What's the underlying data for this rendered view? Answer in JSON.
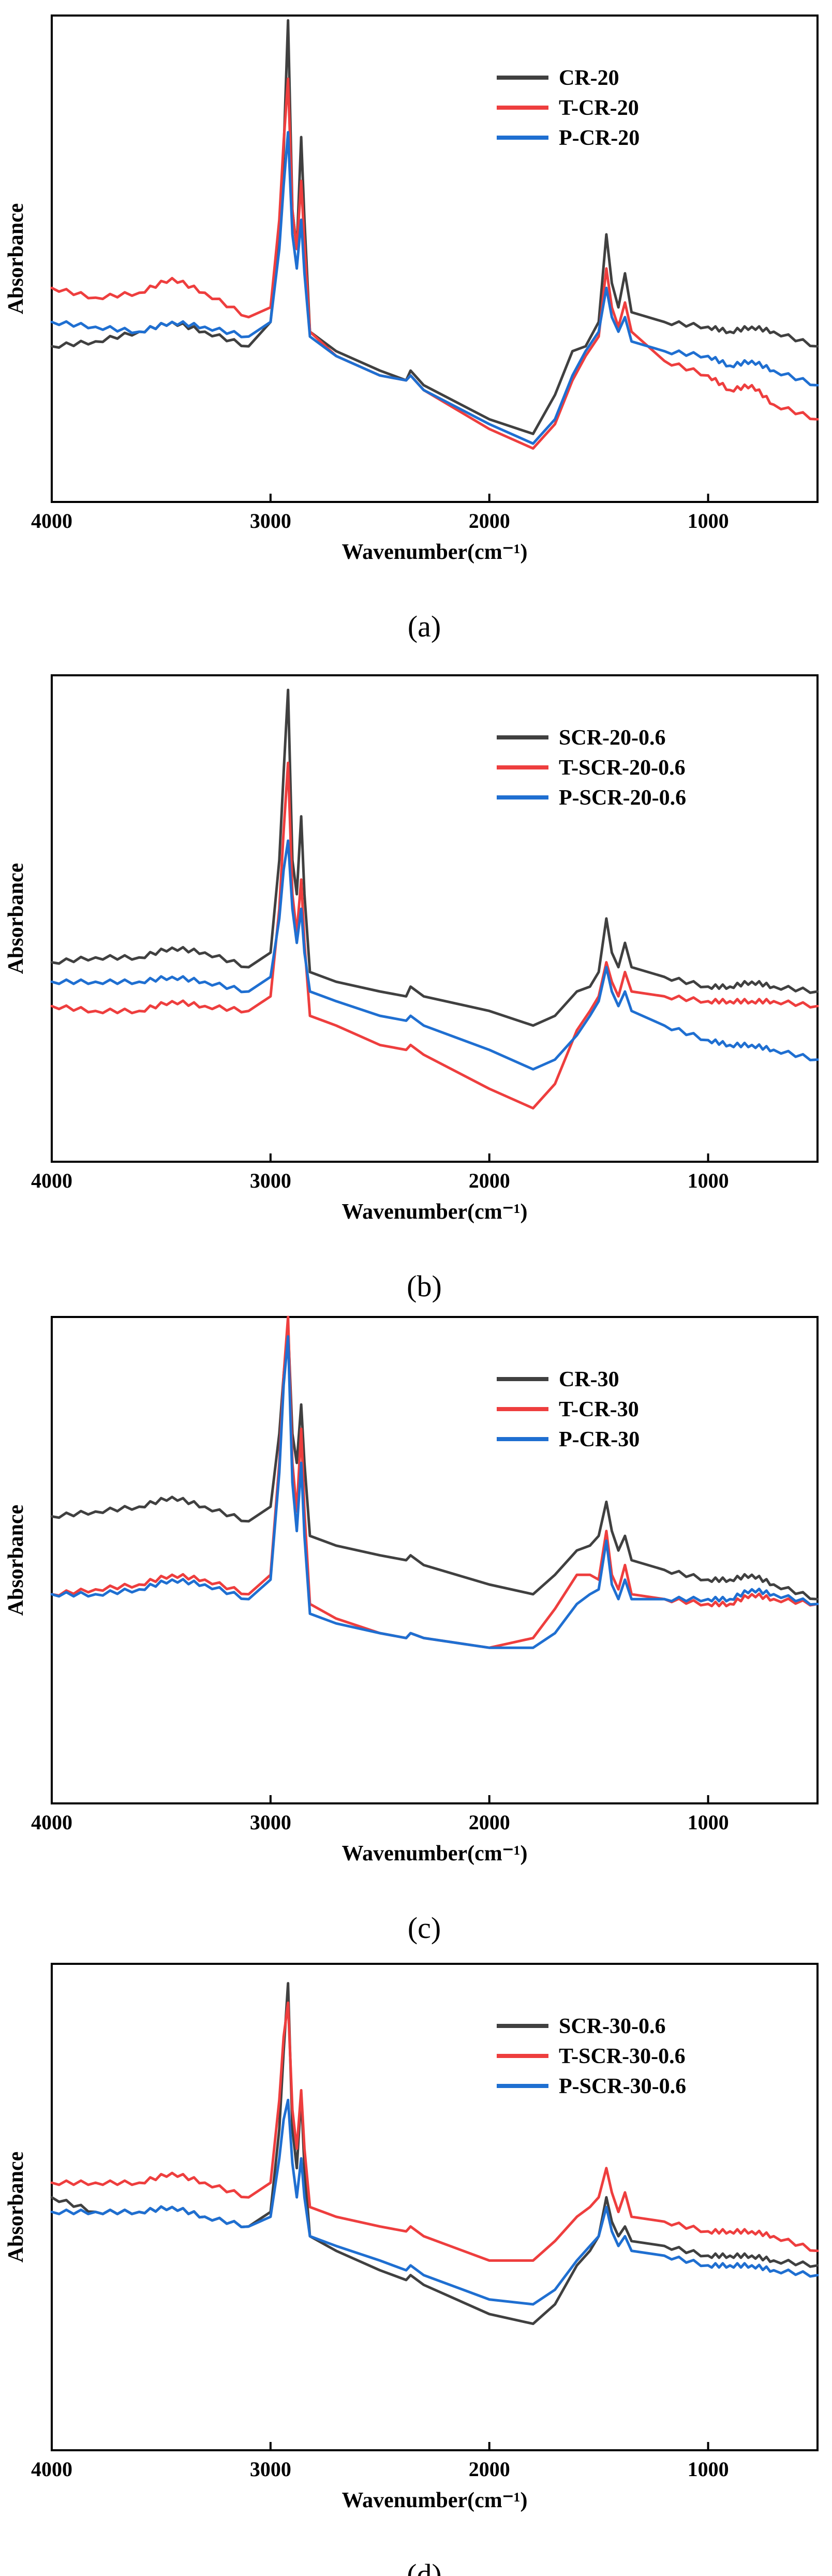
{
  "colors": {
    "black": "#404040",
    "red": "#ee3e3e",
    "blue": "#1f6fd1"
  },
  "chart_data": [
    {
      "type": "line",
      "panel": "(a)",
      "title": "",
      "xlabel": "Wavenumber(cm⁻¹)",
      "ylabel": "Absorbance",
      "xlim": [
        4000,
        500
      ],
      "ylim": [
        0,
        1
      ],
      "xticks": [
        4000,
        3000,
        2000,
        1000
      ],
      "legend_position": "top-right",
      "series": [
        {
          "name": "CR-20",
          "color": "#404040",
          "x": [
            4000,
            3800,
            3600,
            3450,
            3300,
            3100,
            3000,
            2960,
            2940,
            2920,
            2900,
            2880,
            2860,
            2845,
            2820,
            2700,
            2500,
            2380,
            2360,
            2300,
            2000,
            1800,
            1700,
            1620,
            1560,
            1500,
            1465,
            1440,
            1410,
            1380,
            1350,
            1200,
            1000,
            900,
            800,
            700,
            500
          ],
          "y": [
            0.32,
            0.33,
            0.35,
            0.37,
            0.35,
            0.32,
            0.37,
            0.55,
            0.72,
            0.99,
            0.6,
            0.52,
            0.75,
            0.58,
            0.35,
            0.31,
            0.27,
            0.25,
            0.27,
            0.24,
            0.17,
            0.14,
            0.22,
            0.31,
            0.32,
            0.37,
            0.55,
            0.45,
            0.4,
            0.47,
            0.39,
            0.37,
            0.36,
            0.35,
            0.36,
            0.35,
            0.32
          ]
        },
        {
          "name": "T-CR-20",
          "color": "#ee3e3e",
          "x": [
            4000,
            3800,
            3600,
            3450,
            3300,
            3100,
            3000,
            2960,
            2940,
            2920,
            2900,
            2880,
            2860,
            2845,
            2820,
            2700,
            2500,
            2380,
            2360,
            2300,
            2000,
            1800,
            1700,
            1620,
            1560,
            1500,
            1465,
            1440,
            1410,
            1380,
            1350,
            1200,
            1000,
            900,
            800,
            700,
            500
          ],
          "y": [
            0.44,
            0.42,
            0.43,
            0.46,
            0.43,
            0.38,
            0.4,
            0.58,
            0.74,
            0.87,
            0.6,
            0.52,
            0.66,
            0.53,
            0.35,
            0.3,
            0.26,
            0.25,
            0.26,
            0.23,
            0.15,
            0.11,
            0.16,
            0.25,
            0.3,
            0.34,
            0.48,
            0.4,
            0.36,
            0.41,
            0.35,
            0.29,
            0.26,
            0.23,
            0.24,
            0.2,
            0.17
          ]
        },
        {
          "name": "P-CR-20",
          "color": "#1f6fd1",
          "x": [
            4000,
            3800,
            3600,
            3450,
            3300,
            3100,
            3000,
            2960,
            2940,
            2920,
            2900,
            2880,
            2860,
            2845,
            2820,
            2700,
            2500,
            2380,
            2360,
            2300,
            2000,
            1800,
            1700,
            1620,
            1560,
            1500,
            1465,
            1440,
            1410,
            1380,
            1350,
            1200,
            1000,
            900,
            800,
            700,
            500
          ],
          "y": [
            0.37,
            0.36,
            0.35,
            0.37,
            0.36,
            0.34,
            0.37,
            0.52,
            0.65,
            0.76,
            0.55,
            0.48,
            0.58,
            0.47,
            0.34,
            0.3,
            0.26,
            0.25,
            0.26,
            0.23,
            0.16,
            0.12,
            0.17,
            0.26,
            0.31,
            0.35,
            0.44,
            0.38,
            0.35,
            0.38,
            0.33,
            0.31,
            0.3,
            0.28,
            0.29,
            0.27,
            0.24
          ]
        }
      ]
    },
    {
      "type": "line",
      "panel": "(b)",
      "title": "",
      "xlabel": "Wavenumber(cm⁻¹)",
      "ylabel": "Absorbance",
      "xlim": [
        4000,
        500
      ],
      "ylim": [
        0,
        1
      ],
      "xticks": [
        4000,
        3000,
        2000,
        1000
      ],
      "legend_position": "top-right",
      "series": [
        {
          "name": "SCR-20-0.6",
          "color": "#404040",
          "x": [
            4000,
            3800,
            3600,
            3450,
            3300,
            3100,
            3000,
            2960,
            2940,
            2920,
            2900,
            2880,
            2860,
            2845,
            2820,
            2700,
            2500,
            2380,
            2360,
            2300,
            2000,
            1800,
            1700,
            1600,
            1540,
            1500,
            1465,
            1440,
            1410,
            1380,
            1350,
            1200,
            1000,
            900,
            800,
            700,
            500
          ],
          "y": [
            0.41,
            0.42,
            0.42,
            0.44,
            0.43,
            0.4,
            0.43,
            0.62,
            0.8,
            0.97,
            0.62,
            0.55,
            0.71,
            0.55,
            0.39,
            0.37,
            0.35,
            0.34,
            0.36,
            0.34,
            0.31,
            0.28,
            0.3,
            0.35,
            0.36,
            0.39,
            0.5,
            0.43,
            0.4,
            0.45,
            0.4,
            0.38,
            0.36,
            0.36,
            0.37,
            0.36,
            0.35
          ]
        },
        {
          "name": "T-SCR-20-0.6",
          "color": "#ee3e3e",
          "x": [
            4000,
            3800,
            3600,
            3450,
            3300,
            3100,
            3000,
            2960,
            2940,
            2920,
            2900,
            2880,
            2860,
            2845,
            2820,
            2700,
            2500,
            2380,
            2360,
            2300,
            2000,
            1800,
            1700,
            1600,
            1540,
            1500,
            1465,
            1440,
            1410,
            1380,
            1350,
            1200,
            1000,
            900,
            800,
            700,
            500
          ],
          "y": [
            0.32,
            0.31,
            0.31,
            0.33,
            0.32,
            0.31,
            0.34,
            0.52,
            0.68,
            0.82,
            0.55,
            0.47,
            0.58,
            0.45,
            0.3,
            0.28,
            0.24,
            0.23,
            0.24,
            0.22,
            0.15,
            0.11,
            0.16,
            0.27,
            0.31,
            0.34,
            0.41,
            0.37,
            0.34,
            0.39,
            0.35,
            0.34,
            0.33,
            0.33,
            0.33,
            0.33,
            0.32
          ]
        },
        {
          "name": "P-SCR-20-0.6",
          "color": "#1f6fd1",
          "x": [
            4000,
            3800,
            3600,
            3450,
            3300,
            3100,
            3000,
            2960,
            2940,
            2920,
            2900,
            2880,
            2860,
            2845,
            2820,
            2700,
            2500,
            2380,
            2360,
            2300,
            2000,
            1800,
            1700,
            1600,
            1540,
            1500,
            1465,
            1440,
            1410,
            1380,
            1350,
            1200,
            1000,
            900,
            800,
            700,
            500
          ],
          "y": [
            0.37,
            0.37,
            0.37,
            0.38,
            0.37,
            0.35,
            0.38,
            0.5,
            0.6,
            0.66,
            0.52,
            0.45,
            0.52,
            0.43,
            0.35,
            0.33,
            0.3,
            0.29,
            0.3,
            0.28,
            0.23,
            0.19,
            0.21,
            0.26,
            0.3,
            0.33,
            0.4,
            0.35,
            0.32,
            0.35,
            0.31,
            0.28,
            0.25,
            0.24,
            0.24,
            0.23,
            0.21
          ]
        }
      ]
    },
    {
      "type": "line",
      "panel": "(c)",
      "title": "",
      "xlabel": "Wavenumber(cm⁻¹)",
      "ylabel": "Absorbance",
      "xlim": [
        4000,
        500
      ],
      "ylim": [
        0,
        1
      ],
      "xticks": [
        4000,
        3000,
        2000,
        1000
      ],
      "legend_position": "top-right",
      "series": [
        {
          "name": "CR-30",
          "color": "#404040",
          "x": [
            4000,
            3800,
            3600,
            3450,
            3300,
            3100,
            3000,
            2960,
            2940,
            2920,
            2900,
            2880,
            2860,
            2845,
            2820,
            2700,
            2500,
            2380,
            2360,
            2300,
            2000,
            1800,
            1700,
            1600,
            1540,
            1500,
            1465,
            1440,
            1410,
            1380,
            1350,
            1200,
            1000,
            900,
            800,
            700,
            500
          ],
          "y": [
            0.59,
            0.6,
            0.61,
            0.63,
            0.61,
            0.58,
            0.61,
            0.76,
            0.88,
            0.98,
            0.76,
            0.7,
            0.82,
            0.7,
            0.55,
            0.53,
            0.51,
            0.5,
            0.51,
            0.49,
            0.45,
            0.43,
            0.47,
            0.52,
            0.53,
            0.55,
            0.62,
            0.56,
            0.52,
            0.55,
            0.5,
            0.48,
            0.46,
            0.46,
            0.47,
            0.45,
            0.42
          ]
        },
        {
          "name": "T-CR-30",
          "color": "#ee3e3e",
          "x": [
            4000,
            3800,
            3600,
            3450,
            3300,
            3100,
            3000,
            2960,
            2940,
            2920,
            2900,
            2880,
            2860,
            2845,
            2820,
            2700,
            2500,
            2380,
            2360,
            2300,
            2000,
            1800,
            1700,
            1600,
            1540,
            1500,
            1465,
            1440,
            1410,
            1380,
            1350,
            1200,
            1000,
            900,
            800,
            700,
            500
          ],
          "y": [
            0.43,
            0.44,
            0.45,
            0.47,
            0.46,
            0.43,
            0.47,
            0.7,
            0.88,
            1.0,
            0.7,
            0.6,
            0.77,
            0.6,
            0.41,
            0.38,
            0.35,
            0.34,
            0.35,
            0.34,
            0.32,
            0.34,
            0.4,
            0.47,
            0.47,
            0.46,
            0.56,
            0.47,
            0.44,
            0.49,
            0.43,
            0.42,
            0.41,
            0.41,
            0.43,
            0.42,
            0.41
          ]
        },
        {
          "name": "P-CR-30",
          "color": "#1f6fd1",
          "x": [
            4000,
            3800,
            3600,
            3450,
            3300,
            3100,
            3000,
            2960,
            2940,
            2920,
            2900,
            2880,
            2860,
            2845,
            2820,
            2700,
            2500,
            2380,
            2360,
            2300,
            2000,
            1800,
            1700,
            1600,
            1540,
            1500,
            1465,
            1440,
            1410,
            1380,
            1350,
            1200,
            1000,
            900,
            800,
            700,
            500
          ],
          "y": [
            0.43,
            0.43,
            0.44,
            0.46,
            0.45,
            0.42,
            0.46,
            0.68,
            0.86,
            0.96,
            0.66,
            0.56,
            0.7,
            0.55,
            0.39,
            0.37,
            0.35,
            0.34,
            0.35,
            0.34,
            0.32,
            0.32,
            0.35,
            0.41,
            0.43,
            0.44,
            0.54,
            0.45,
            0.42,
            0.46,
            0.42,
            0.42,
            0.42,
            0.42,
            0.44,
            0.43,
            0.41
          ]
        }
      ]
    },
    {
      "type": "line",
      "panel": "(d)",
      "title": "",
      "xlabel": "Wavenumber(cm⁻¹)",
      "ylabel": "Absorbance",
      "xlim": [
        4000,
        500
      ],
      "ylim": [
        0,
        1
      ],
      "xticks": [
        4000,
        3000,
        2000,
        1000
      ],
      "legend_position": "top-right",
      "series": [
        {
          "name": "SCR-30-0.6",
          "color": "#404040",
          "x": [
            4000,
            3800,
            3600,
            3450,
            3300,
            3100,
            3000,
            2960,
            2940,
            2920,
            2900,
            2880,
            2860,
            2845,
            2820,
            2700,
            2500,
            2380,
            2360,
            2300,
            2000,
            1800,
            1700,
            1600,
            1540,
            1500,
            1465,
            1440,
            1410,
            1380,
            1350,
            1200,
            1000,
            900,
            800,
            700,
            500
          ],
          "y": [
            0.52,
            0.49,
            0.49,
            0.5,
            0.48,
            0.46,
            0.49,
            0.66,
            0.82,
            0.96,
            0.66,
            0.58,
            0.73,
            0.58,
            0.44,
            0.41,
            0.37,
            0.35,
            0.36,
            0.34,
            0.28,
            0.26,
            0.3,
            0.38,
            0.41,
            0.44,
            0.52,
            0.47,
            0.44,
            0.46,
            0.43,
            0.42,
            0.4,
            0.4,
            0.4,
            0.39,
            0.38
          ]
        },
        {
          "name": "T-SCR-30-0.6",
          "color": "#ee3e3e",
          "x": [
            4000,
            3800,
            3600,
            3450,
            3300,
            3100,
            3000,
            2960,
            2940,
            2920,
            2900,
            2880,
            2860,
            2845,
            2820,
            2700,
            2500,
            2380,
            2360,
            2300,
            2000,
            1800,
            1700,
            1600,
            1540,
            1500,
            1465,
            1440,
            1410,
            1380,
            1350,
            1200,
            1000,
            900,
            800,
            700,
            500
          ],
          "y": [
            0.55,
            0.55,
            0.55,
            0.57,
            0.55,
            0.52,
            0.55,
            0.72,
            0.85,
            0.92,
            0.7,
            0.62,
            0.74,
            0.62,
            0.5,
            0.48,
            0.46,
            0.45,
            0.46,
            0.44,
            0.39,
            0.39,
            0.43,
            0.48,
            0.5,
            0.52,
            0.58,
            0.53,
            0.49,
            0.53,
            0.48,
            0.47,
            0.45,
            0.45,
            0.45,
            0.44,
            0.41
          ]
        },
        {
          "name": "P-SCR-30-0.6",
          "color": "#1f6fd1",
          "x": [
            4000,
            3800,
            3600,
            3450,
            3300,
            3100,
            3000,
            2960,
            2940,
            2920,
            2900,
            2880,
            2860,
            2845,
            2820,
            2700,
            2500,
            2380,
            2360,
            2300,
            2000,
            1800,
            1700,
            1600,
            1540,
            1500,
            1465,
            1440,
            1410,
            1380,
            1350,
            1200,
            1000,
            900,
            800,
            700,
            500
          ],
          "y": [
            0.49,
            0.49,
            0.49,
            0.5,
            0.48,
            0.46,
            0.48,
            0.6,
            0.68,
            0.72,
            0.59,
            0.52,
            0.6,
            0.52,
            0.44,
            0.42,
            0.39,
            0.37,
            0.38,
            0.36,
            0.31,
            0.3,
            0.33,
            0.39,
            0.42,
            0.44,
            0.5,
            0.45,
            0.42,
            0.44,
            0.41,
            0.4,
            0.38,
            0.38,
            0.38,
            0.37,
            0.36
          ]
        }
      ]
    }
  ]
}
